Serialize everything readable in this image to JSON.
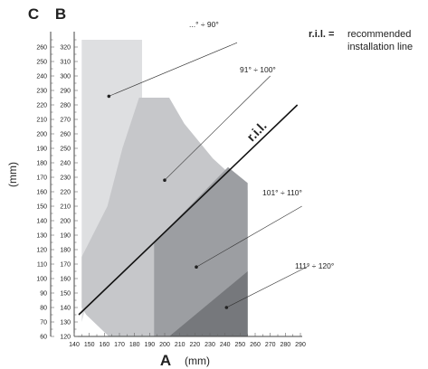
{
  "chart_data": {
    "type": "area",
    "title": "",
    "axes": {
      "x": {
        "letter": "A",
        "unit": "(mm)",
        "range": [
          140,
          290
        ],
        "ticks": [
          140,
          150,
          160,
          170,
          180,
          190,
          200,
          210,
          220,
          230,
          240,
          250,
          260,
          270,
          280,
          290
        ]
      },
      "y_B": {
        "letter": "B",
        "range": [
          120,
          325
        ],
        "ticks": [
          120,
          130,
          140,
          150,
          160,
          170,
          180,
          190,
          200,
          210,
          220,
          230,
          240,
          250,
          260,
          270,
          280,
          290,
          300,
          310,
          320
        ]
      },
      "y_C": {
        "letter": "C",
        "unit": "(mm)",
        "range": [
          60,
          265
        ],
        "ticks": [
          60,
          70,
          80,
          90,
          100,
          110,
          120,
          130,
          140,
          150,
          160,
          170,
          180,
          190,
          200,
          210,
          220,
          230,
          240,
          250,
          260
        ]
      }
    },
    "regions": [
      {
        "label": "...° ÷ 90°",
        "color": "#dedfe1",
        "polygon": [
          [
            145,
            325
          ],
          [
            185,
            325
          ],
          [
            185,
            285
          ],
          [
            195,
            285
          ],
          [
            195,
            285
          ],
          [
            188,
            255
          ],
          [
            173,
            225
          ],
          [
            157,
            175
          ],
          [
            145,
            130
          ]
        ]
      },
      {
        "label": "91° ÷ 100°",
        "color": "#c6c7ca",
        "polygon": [
          [
            145,
            175
          ],
          [
            162,
            210
          ],
          [
            172,
            250
          ],
          [
            183,
            285
          ],
          [
            203,
            285
          ],
          [
            213,
            267
          ],
          [
            232,
            243
          ],
          [
            255,
            221
          ],
          [
            255,
            120
          ],
          [
            163,
            120
          ],
          [
            148,
            135
          ],
          [
            145,
            140
          ]
        ]
      },
      {
        "label": "101° ÷ 110°",
        "color": "#9c9ea2",
        "polygon": [
          [
            193,
            185
          ],
          [
            242,
            237
          ],
          [
            255,
            226
          ],
          [
            255,
            120
          ],
          [
            193,
            120
          ]
        ]
      },
      {
        "label": "111° ÷ 120°",
        "color": "#76787c",
        "polygon": [
          [
            203,
            120
          ],
          [
            255,
            165
          ],
          [
            255,
            120
          ]
        ]
      }
    ],
    "ril_line": {
      "label": "r.i.l.",
      "points": [
        [
          143,
          135
        ],
        [
          288,
          280
        ]
      ]
    },
    "legend": {
      "key": "r.i.l. =",
      "line1": "recommended",
      "line2": "installation line",
      "position": "top-right"
    }
  }
}
